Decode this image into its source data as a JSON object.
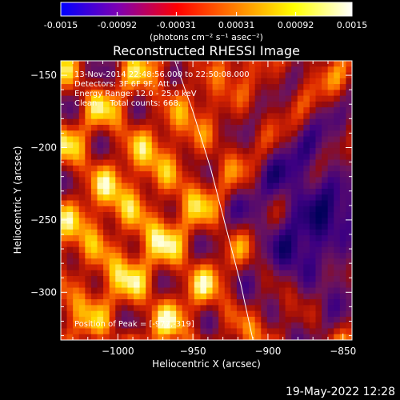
{
  "colorbar": {
    "tick_labels": [
      "-0.0015",
      "-0.00092",
      "-0.00031",
      "0.00031",
      "0.00092",
      "0.0015"
    ],
    "tick_values": [
      -0.0015,
      -0.00092,
      -0.00031,
      0.00031,
      0.00092,
      0.0015
    ],
    "range": [
      -0.0015,
      0.0015
    ],
    "unit_label": "(photons cm⁻² s⁻¹ asec⁻²)",
    "colormap_stops": [
      "#0000ff",
      "#8000b0",
      "#ff0000",
      "#ff8000",
      "#ffff00",
      "#ffffff"
    ]
  },
  "chart_data": {
    "type": "heatmap",
    "title": "Reconstructed RHESSI Image",
    "xlabel": "Heliocentric X (arcsec)",
    "ylabel": "Heliocentric Y (arcsec)",
    "xlim": [
      -1038,
      -844
    ],
    "ylim": [
      -333,
      -140
    ],
    "x_ticks": [
      -1000,
      -950,
      -900,
      -850
    ],
    "x_tick_labels": [
      "−1000",
      "−950",
      "−900",
      "−850"
    ],
    "y_ticks": [
      -150,
      -200,
      -250,
      -300
    ],
    "y_tick_labels": [
      "−150",
      "−200",
      "−250",
      "−300"
    ],
    "annotations": [
      "13-Nov-2014 22:48:56.000 to 22:50:08.000",
      "Detectors: 3F 6F 9F, Att 0",
      "Energy Range: 12.0 - 25.0 keV",
      "Clean     Total counts: 668."
    ],
    "peak_label": "Position of Peak = [-977,-319]",
    "peak_position": [
      -977,
      -319
    ],
    "limb_line": {
      "color": "#ffffff",
      "points": [
        [
          -962,
          -140
        ],
        [
          -950,
          -175
        ],
        [
          -938,
          -215
        ],
        [
          -928,
          -255
        ],
        [
          -918,
          -295
        ],
        [
          -910,
          -333
        ]
      ]
    }
  },
  "footer": {
    "timestamp": "19-May-2022 12:28"
  }
}
